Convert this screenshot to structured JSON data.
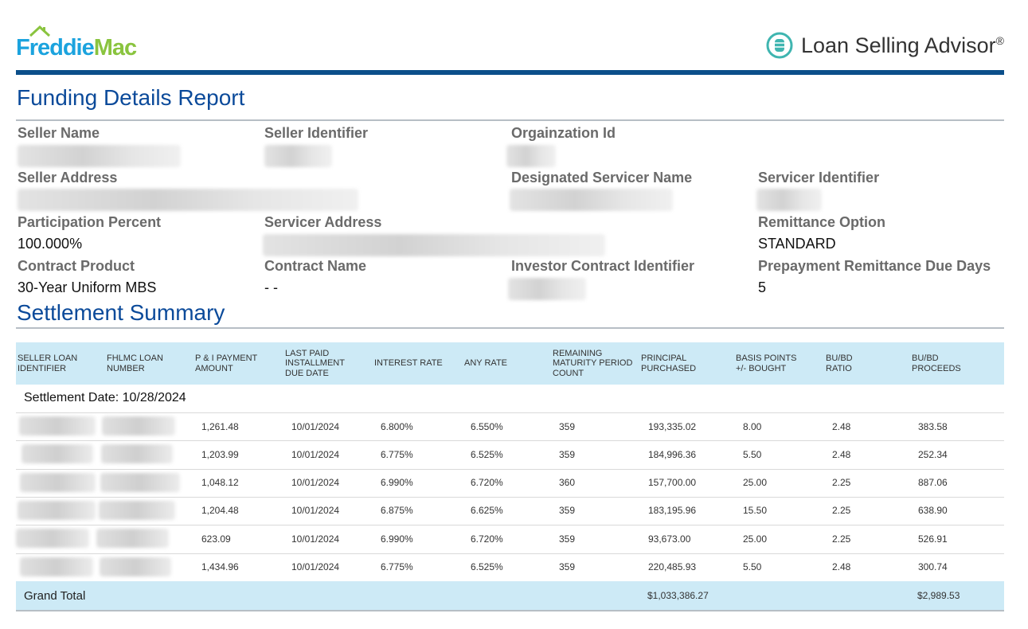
{
  "header": {
    "logo_part1": "Freddie",
    "logo_part2": "Mac",
    "app_name": "Loan Selling Advisor",
    "reg_mark": "®",
    "app_icon": "coin-stack-icon"
  },
  "report_title": "Funding Details Report",
  "fields": {
    "seller_name": {
      "label": "Seller Name"
    },
    "seller_identifier": {
      "label": "Seller Identifier"
    },
    "organization_id": {
      "label": "Orgainzation Id"
    },
    "seller_address": {
      "label": "Seller Address"
    },
    "designated_servicer_name": {
      "label": "Designated Servicer Name"
    },
    "servicer_identifier": {
      "label": "Servicer Identifier"
    },
    "participation_percent": {
      "label": "Participation Percent",
      "value": "100.000%"
    },
    "servicer_address": {
      "label": "Servicer Address"
    },
    "remittance_option": {
      "label": "Remittance Option",
      "value": "STANDARD"
    },
    "contract_product": {
      "label": "Contract Product",
      "value": "30-Year Uniform MBS"
    },
    "contract_name": {
      "label": "Contract Name",
      "value": "- -"
    },
    "investor_contract_identifier": {
      "label": "Investor Contract Identifier"
    },
    "prepayment_remittance_due_days": {
      "label": "Prepayment Remittance Due Days",
      "value": "5"
    }
  },
  "settlement": {
    "title": "Settlement Summary",
    "columns": {
      "c0": "SELLER LOAN IDENTIFIER",
      "c1": "FHLMC LOAN NUMBER",
      "c2": "P & I PAYMENT AMOUNT",
      "c3": "LAST PAID INSTALLMENT DUE DATE",
      "c4": "INTEREST RATE",
      "c5": "ANY RATE",
      "c6": "REMAINING MATURITY PERIOD COUNT",
      "c7": "PRINCIPAL PURCHASED",
      "c8": "BASIS POINTS +/- BOUGHT",
      "c9": "BU/BD RATIO",
      "c10": "BU/BD PROCEEDS"
    },
    "settlement_date": "Settlement Date: 10/28/2024",
    "rows": [
      {
        "pi": "1,261.48",
        "due": "10/01/2024",
        "rate": "6.800%",
        "any": "6.550%",
        "rem": "359",
        "principal": "193,335.02",
        "bp": "8.00",
        "ratio": "2.48",
        "proceeds": "383.58"
      },
      {
        "pi": "1,203.99",
        "due": "10/01/2024",
        "rate": "6.775%",
        "any": "6.525%",
        "rem": "359",
        "principal": "184,996.36",
        "bp": "5.50",
        "ratio": "2.48",
        "proceeds": "252.34"
      },
      {
        "pi": "1,048.12",
        "due": "10/01/2024",
        "rate": "6.990%",
        "any": "6.720%",
        "rem": "360",
        "principal": "157,700.00",
        "bp": "25.00",
        "ratio": "2.25",
        "proceeds": "887.06"
      },
      {
        "pi": "1,204.48",
        "due": "10/01/2024",
        "rate": "6.875%",
        "any": "6.625%",
        "rem": "359",
        "principal": "183,195.96",
        "bp": "15.50",
        "ratio": "2.25",
        "proceeds": "638.90"
      },
      {
        "pi": "623.09",
        "due": "10/01/2024",
        "rate": "6.990%",
        "any": "6.720%",
        "rem": "359",
        "principal": "93,673.00",
        "bp": "25.00",
        "ratio": "2.25",
        "proceeds": "526.91"
      },
      {
        "pi": "1,434.96",
        "due": "10/01/2024",
        "rate": "6.775%",
        "any": "6.525%",
        "rem": "359",
        "principal": "220,485.93",
        "bp": "5.50",
        "ratio": "2.48",
        "proceeds": "300.74"
      }
    ],
    "grand_total": {
      "label": "Grand Total",
      "principal": "$1,033,386.27",
      "proceeds": "$2,989.53"
    }
  }
}
